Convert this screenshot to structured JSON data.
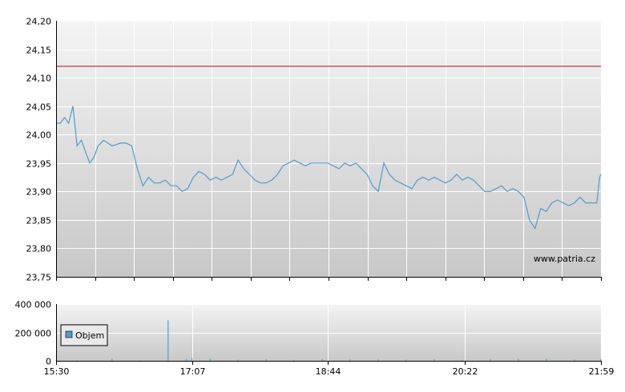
{
  "watermark": "www.patria.cz",
  "colors": {
    "line": "#4a9fd0",
    "reference": "#cc3333",
    "volume": "#4a9fd0",
    "grid": "#ffffff",
    "plot_top": "#f4f4f4",
    "plot_bottom": "#c8c8c8"
  },
  "chart_data": [
    {
      "type": "line",
      "title": "",
      "xlabel": "",
      "ylabel": "",
      "ylim": [
        23.75,
        24.2
      ],
      "yticks": [
        "24,20",
        "24,15",
        "24,10",
        "24,05",
        "24,00",
        "23,95",
        "23,90",
        "23,85",
        "23,80",
        "23,75"
      ],
      "reference_line": 24.12,
      "grid": true,
      "series": [
        {
          "x": [
            "15:30",
            "15:33",
            "15:36",
            "15:39",
            "15:42",
            "15:45",
            "15:48",
            "15:51",
            "15:54",
            "15:57",
            "16:00",
            "16:04",
            "16:10",
            "16:16",
            "16:20",
            "16:24",
            "16:28",
            "16:32",
            "16:36",
            "16:40",
            "16:44",
            "16:48",
            "16:52",
            "16:56",
            "17:00",
            "17:04",
            "17:08",
            "17:12",
            "17:16",
            "17:20",
            "17:24",
            "17:28",
            "17:32",
            "17:36",
            "17:40",
            "17:44",
            "17:48",
            "17:52",
            "17:56",
            "18:00",
            "18:04",
            "18:08",
            "18:12",
            "18:16",
            "18:20",
            "18:24",
            "18:28",
            "18:32",
            "18:36",
            "18:40",
            "18:44",
            "18:48",
            "18:52",
            "18:56",
            "19:00",
            "19:04",
            "19:08",
            "19:12",
            "19:16",
            "19:20",
            "19:24",
            "19:28",
            "19:32",
            "19:36",
            "19:40",
            "19:44",
            "19:48",
            "19:52",
            "19:56",
            "20:00",
            "20:04",
            "20:08",
            "20:12",
            "20:16",
            "20:20",
            "20:24",
            "20:28",
            "20:32",
            "20:36",
            "20:40",
            "20:44",
            "20:48",
            "20:52",
            "20:56",
            "21:00",
            "21:04",
            "21:08",
            "21:12",
            "21:16",
            "21:20",
            "21:24",
            "21:28",
            "21:32",
            "21:36",
            "21:40",
            "21:44",
            "21:48",
            "21:52",
            "21:56",
            "21:58",
            "21:59"
          ],
          "values": [
            24.02,
            24.02,
            24.03,
            24.02,
            24.05,
            23.98,
            23.99,
            23.97,
            23.95,
            23.96,
            23.98,
            23.99,
            23.98,
            23.985,
            23.985,
            23.98,
            23.94,
            23.91,
            23.925,
            23.915,
            23.915,
            23.92,
            23.91,
            23.91,
            23.9,
            23.905,
            23.925,
            23.935,
            23.93,
            23.92,
            23.925,
            23.92,
            23.925,
            23.93,
            23.955,
            23.94,
            23.93,
            23.92,
            23.915,
            23.915,
            23.92,
            23.93,
            23.945,
            23.95,
            23.955,
            23.95,
            23.945,
            23.95,
            23.95,
            23.95,
            23.95,
            23.945,
            23.94,
            23.95,
            23.945,
            23.95,
            23.94,
            23.93,
            23.91,
            23.9,
            23.95,
            23.93,
            23.92,
            23.915,
            23.91,
            23.905,
            23.92,
            23.925,
            23.92,
            23.925,
            23.92,
            23.915,
            23.92,
            23.93,
            23.92,
            23.925,
            23.92,
            23.91,
            23.9,
            23.9,
            23.905,
            23.91,
            23.9,
            23.905,
            23.9,
            23.89,
            23.85,
            23.835,
            23.87,
            23.865,
            23.88,
            23.885,
            23.88,
            23.875,
            23.88,
            23.89,
            23.88,
            23.88,
            23.88,
            23.925,
            23.93
          ]
        }
      ]
    },
    {
      "type": "bar",
      "title": "",
      "ylim": [
        0,
        400000
      ],
      "yticks": [
        "400 000",
        "200 000",
        "0"
      ],
      "xticks": [
        "15:30",
        "17:07",
        "18:44",
        "20:22",
        "21:59"
      ],
      "legend": "Objem",
      "legend_position": "top-left",
      "series": [
        {
          "name": "Objem",
          "x": [
            "15:30",
            "15:45",
            "16:10",
            "16:30",
            "16:50",
            "17:03",
            "17:07",
            "17:20",
            "17:40",
            "18:00",
            "18:20",
            "18:40",
            "19:00",
            "19:20",
            "19:40",
            "20:00",
            "20:20",
            "20:40",
            "21:00",
            "21:20",
            "21:40",
            "21:59"
          ],
          "values": [
            4000,
            3000,
            15000,
            3000,
            285000,
            12000,
            20000,
            15000,
            8000,
            10000,
            7000,
            12000,
            10000,
            9000,
            8000,
            10000,
            6000,
            11000,
            13000,
            14000,
            9000,
            12000
          ]
        }
      ]
    }
  ]
}
